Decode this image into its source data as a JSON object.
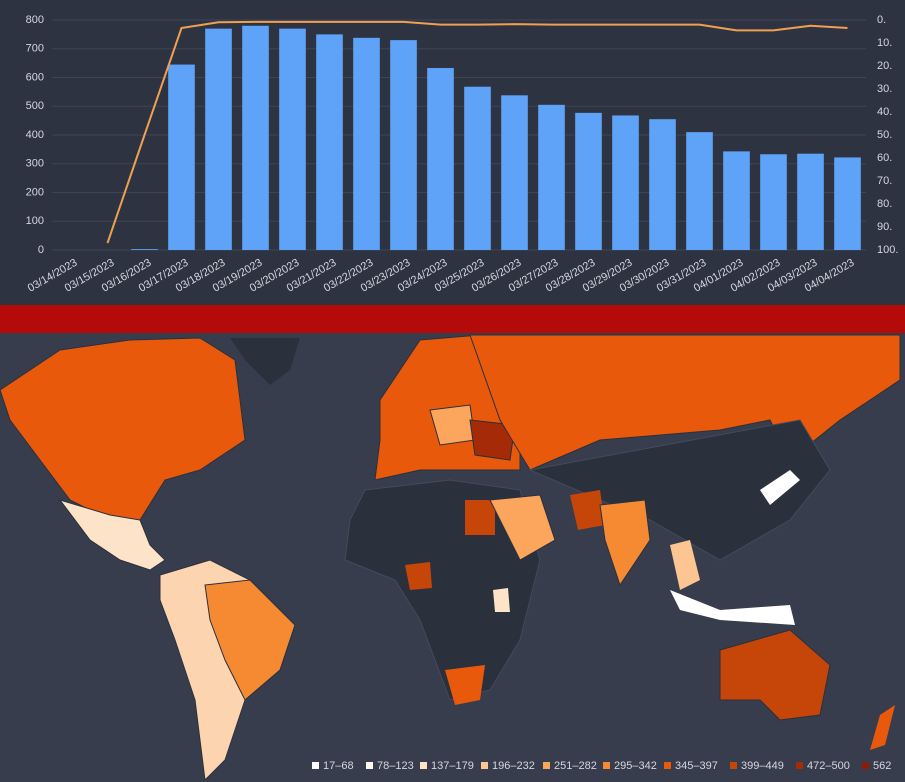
{
  "chart_data": [
    {
      "type": "bar",
      "categories": [
        "03/14/2023",
        "03/15/2023",
        "03/16/2023",
        "03/17/2023",
        "03/18/2023",
        "03/19/2023",
        "03/20/2023",
        "03/21/2023",
        "03/22/2023",
        "03/23/2023",
        "03/24/2023",
        "03/25/2023",
        "03/26/2023",
        "03/27/2023",
        "03/28/2023",
        "03/29/2023",
        "03/30/2023",
        "03/31/2023",
        "04/01/2023",
        "04/02/2023",
        "04/03/2023",
        "04/04/2023"
      ],
      "series": [
        {
          "color": "#5ea3f7",
          "values": [
            0,
            0,
            3,
            645,
            770,
            780,
            770,
            750,
            738,
            730,
            633,
            568,
            538,
            505,
            477,
            468,
            455,
            410,
            343,
            333,
            335,
            322
          ]
        },
        {
          "type": "line",
          "axis": "y2",
          "color": "#f0a050",
          "values": [
            null,
            97,
            50,
            3.5,
            1,
            0.8,
            0.8,
            0.8,
            0.8,
            0.8,
            2,
            2,
            1.8,
            2,
            2,
            2,
            2,
            2,
            4.5,
            4.5,
            2.5,
            3.5
          ]
        }
      ],
      "ylim": [
        0,
        800
      ],
      "yticks": [
        0,
        100,
        200,
        300,
        400,
        500,
        600,
        700,
        800
      ],
      "y2lim": [
        100,
        0
      ],
      "y2ticks": [
        {
          "value": 0,
          "label": "0."
        },
        {
          "value": 10,
          "label": "10."
        },
        {
          "value": 20,
          "label": "20."
        },
        {
          "value": 30,
          "label": "30."
        },
        {
          "value": 40,
          "label": "40."
        },
        {
          "value": 50,
          "label": "50."
        },
        {
          "value": 60,
          "label": "60."
        },
        {
          "value": 70,
          "label": "70."
        },
        {
          "value": 80,
          "label": "80."
        },
        {
          "value": 90,
          "label": "90."
        },
        {
          "value": 100,
          "label": "100."
        }
      ],
      "grid": true
    },
    {
      "type": "map",
      "legend": [
        {
          "label": "17–68",
          "color": "#ffffff"
        },
        {
          "label": "78–123",
          "color": "#fff8f0"
        },
        {
          "label": "137–179",
          "color": "#fde3c8"
        },
        {
          "label": "196–232",
          "color": "#fcc592"
        },
        {
          "label": "251–282",
          "color": "#fba55d"
        },
        {
          "label": "295–342",
          "color": "#f68a33"
        },
        {
          "label": "345–397",
          "color": "#e8590c"
        },
        {
          "label": "399–449",
          "color": "#c64509"
        },
        {
          "label": "472–500",
          "color": "#a52a07"
        },
        {
          "label": "562",
          "color": "#8b1d04"
        }
      ]
    }
  ]
}
